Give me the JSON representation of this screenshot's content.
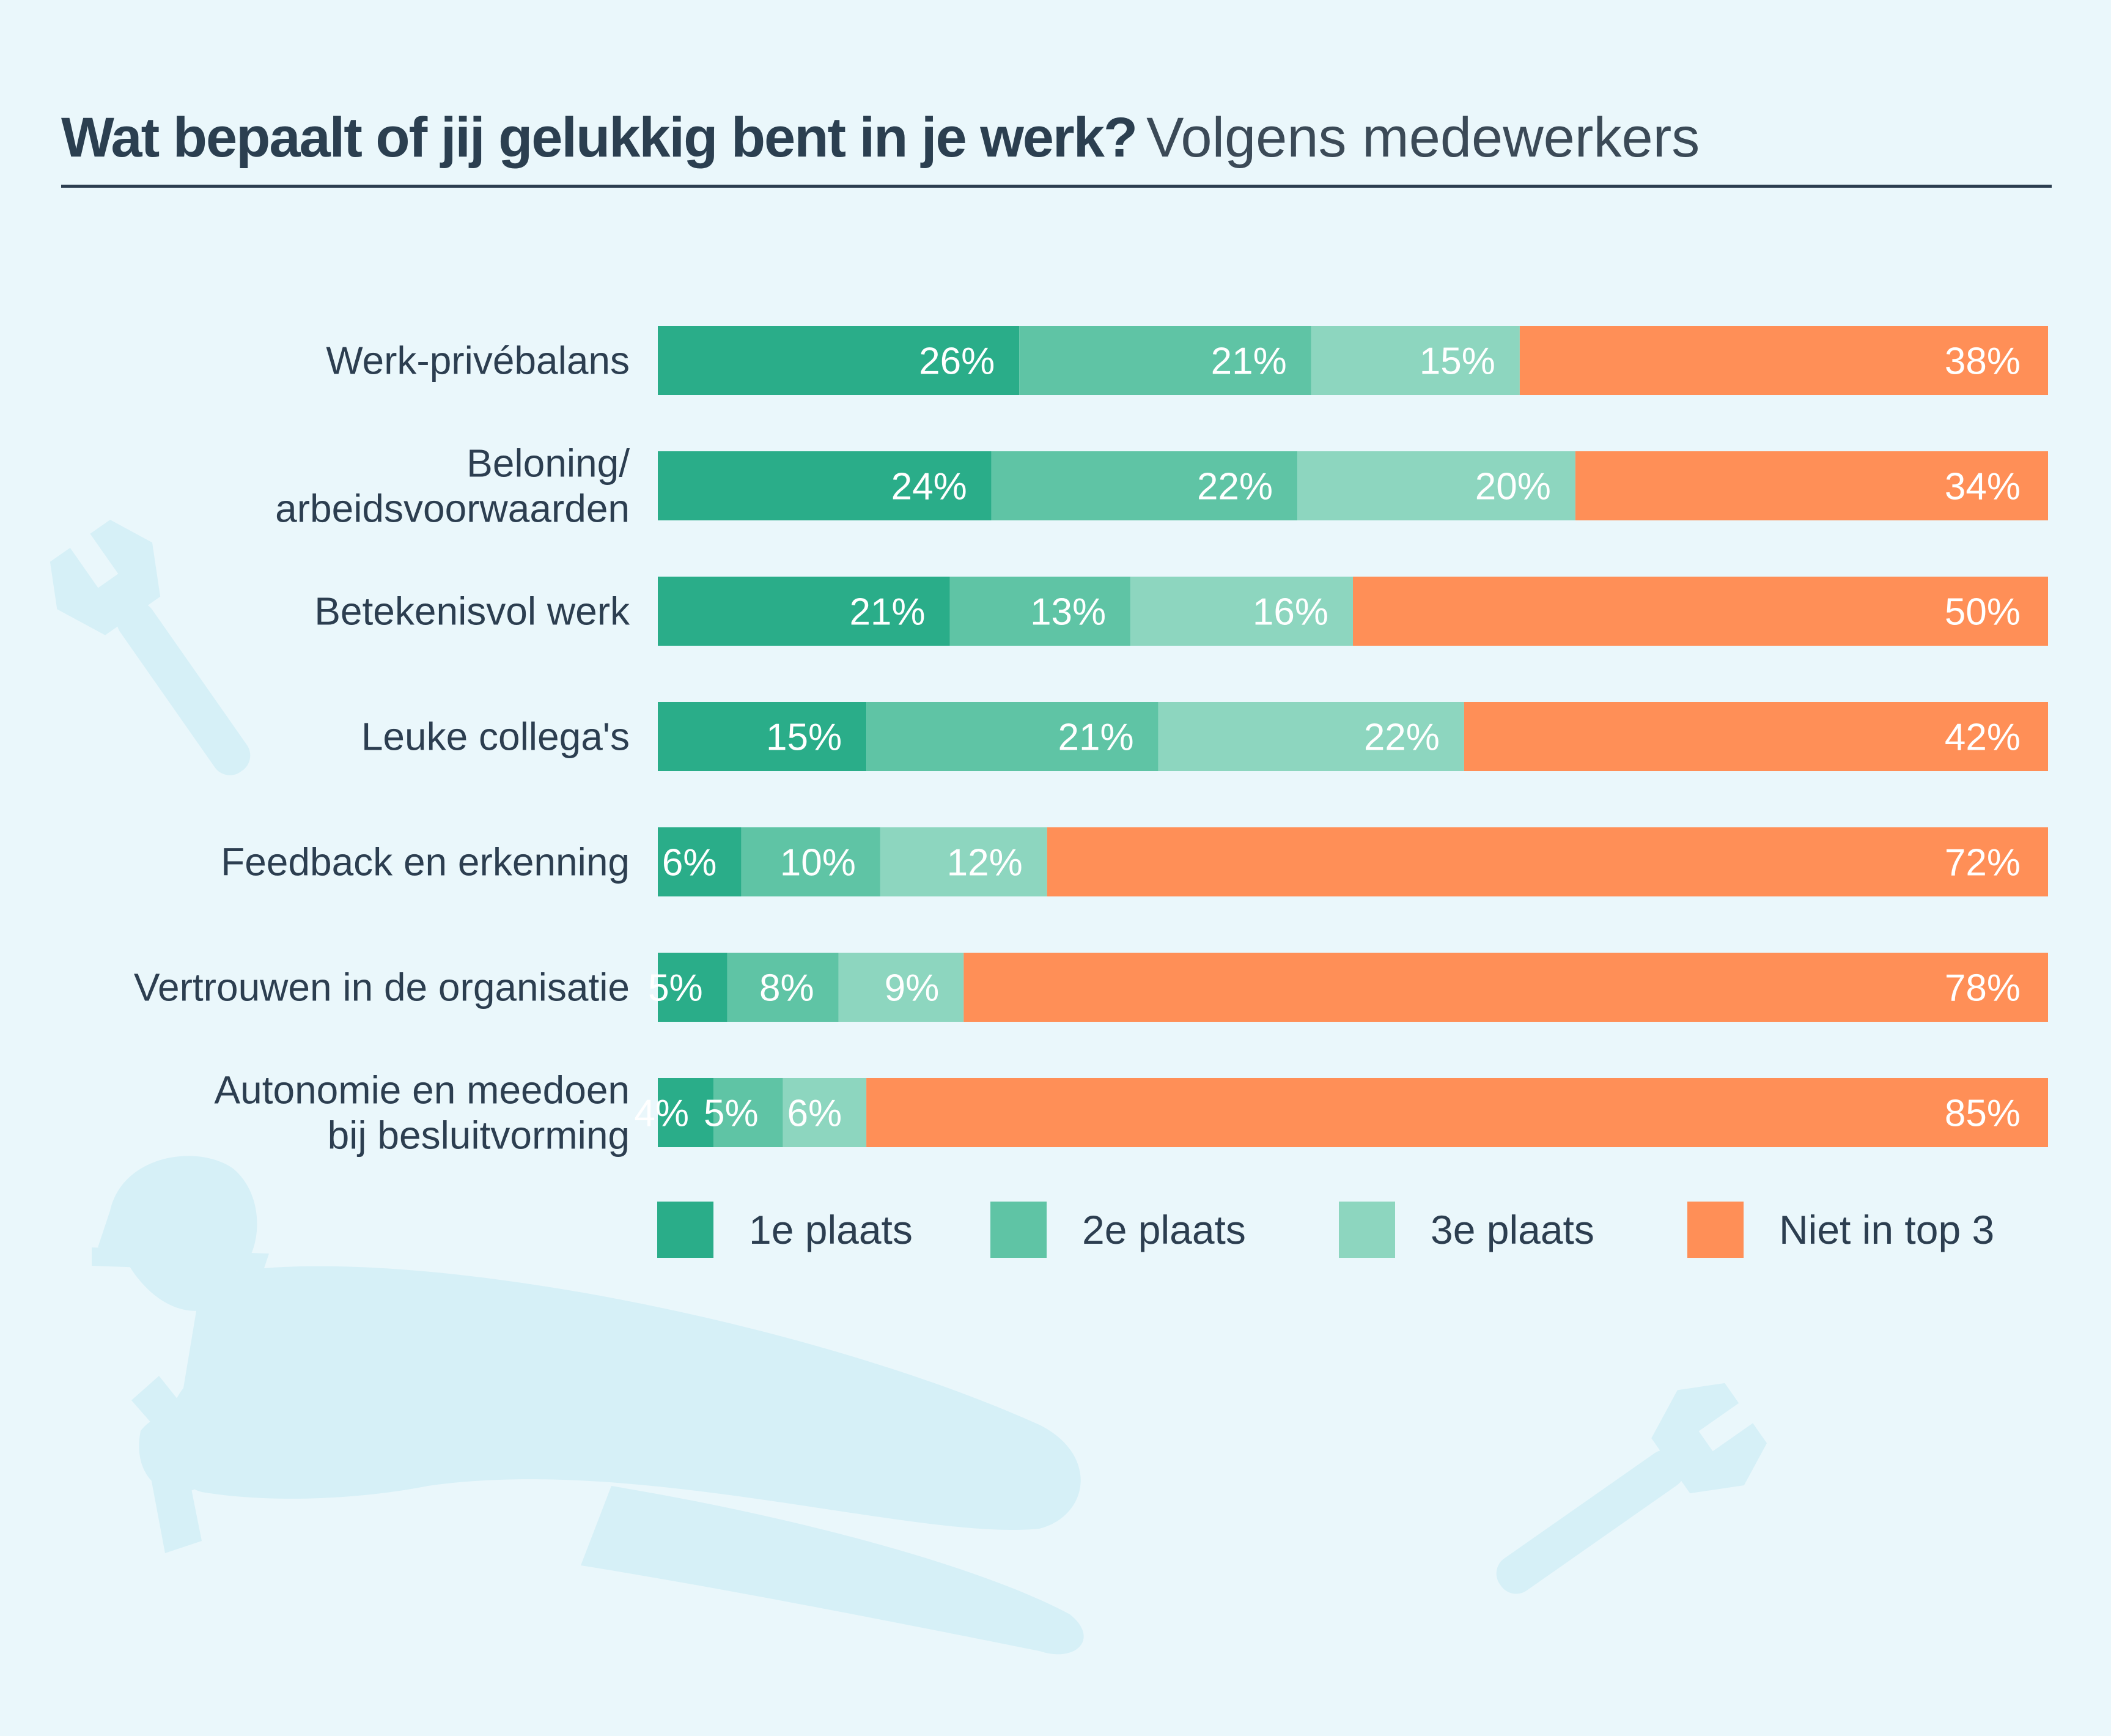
{
  "title": "Wat bepaalt of jij gelukkig bent in je werk?",
  "subtitle": "Volgens medewerkers",
  "colors": {
    "background": "#eaf7fb",
    "first": "#2aad89",
    "second": "#5fc4a5",
    "third": "#8dd6bf",
    "not_top3": "#ff8f57",
    "decor": "#d6f0f7"
  },
  "legend": [
    {
      "label": "1e plaats",
      "color": "#2aad89"
    },
    {
      "label": "2e plaats",
      "color": "#5fc4a5"
    },
    {
      "label": "3e plaats",
      "color": "#8dd6bf"
    },
    {
      "label": "Niet in top 3",
      "color": "#ff8f57"
    }
  ],
  "chart_data": {
    "type": "bar",
    "orientation": "horizontal",
    "stacked": true,
    "title": "Wat bepaalt of jij gelukkig bent in je werk?",
    "subtitle": "Volgens medewerkers",
    "value_format": "{v}%",
    "xlim": [
      0,
      100
    ],
    "grid": false,
    "legend_position": "bottom",
    "categories": [
      [
        "Werk-privébalans"
      ],
      [
        "Beloning/",
        "arbeidsvoorwaarden"
      ],
      [
        "Betekenisvol werk"
      ],
      [
        "Leuke collega's"
      ],
      [
        "Feedback en erkenning"
      ],
      [
        "Vertrouwen in de organisatie"
      ],
      [
        "Autonomie en meedoen",
        "bij besluitvorming"
      ]
    ],
    "series": [
      {
        "name": "1e plaats",
        "color": "#2aad89",
        "values": [
          26,
          24,
          21,
          15,
          6,
          5,
          4
        ]
      },
      {
        "name": "2e plaats",
        "color": "#5fc4a5",
        "values": [
          21,
          22,
          13,
          21,
          10,
          8,
          5
        ]
      },
      {
        "name": "3e plaats",
        "color": "#8dd6bf",
        "values": [
          15,
          20,
          16,
          22,
          12,
          9,
          6
        ]
      },
      {
        "name": "Niet in top 3",
        "color": "#ff8f57",
        "values": [
          38,
          34,
          50,
          42,
          72,
          78,
          85
        ]
      }
    ]
  }
}
